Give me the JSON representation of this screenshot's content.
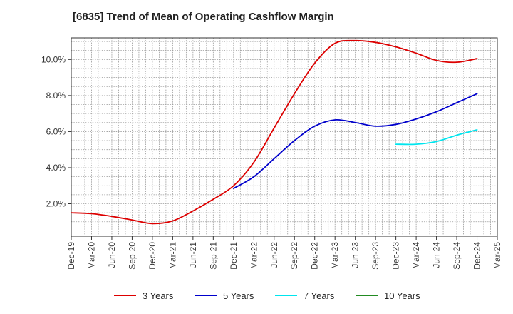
{
  "chart_data": {
    "type": "line",
    "title": "[6835]  Trend of Mean of Operating Cashflow Margin",
    "xlabel": "",
    "ylabel": "",
    "x": [
      "Dec-19",
      "Mar-20",
      "Jun-20",
      "Sep-20",
      "Dec-20",
      "Mar-21",
      "Jun-21",
      "Sep-21",
      "Dec-21",
      "Mar-22",
      "Jun-22",
      "Sep-22",
      "Dec-22",
      "Mar-23",
      "Jun-23",
      "Sep-23",
      "Dec-23",
      "Mar-24",
      "Jun-24",
      "Sep-24",
      "Dec-24",
      "Mar-25"
    ],
    "ylim": [
      0.2,
      11.2
    ],
    "y_ticks": [
      2.0,
      4.0,
      6.0,
      8.0,
      10.0
    ],
    "y_tick_labels": [
      "2.0%",
      "4.0%",
      "6.0%",
      "8.0%",
      "10.0%"
    ],
    "grid": true,
    "legend_position": "bottom",
    "series": [
      {
        "name": "3 Years",
        "color": "#dd0000",
        "values": [
          1.5,
          1.45,
          1.3,
          1.1,
          0.9,
          1.05,
          1.6,
          2.25,
          3.0,
          4.3,
          6.2,
          8.1,
          9.8,
          10.9,
          11.05,
          10.95,
          10.7,
          10.35,
          9.95,
          9.85,
          10.05,
          null
        ]
      },
      {
        "name": "5 Years",
        "color": "#0000cc",
        "values": [
          null,
          null,
          null,
          null,
          null,
          null,
          null,
          null,
          2.85,
          3.5,
          4.5,
          5.5,
          6.3,
          6.65,
          6.5,
          6.3,
          6.4,
          6.7,
          7.1,
          7.6,
          8.1,
          null
        ]
      },
      {
        "name": "7 Years",
        "color": "#00e5ee",
        "values": [
          null,
          null,
          null,
          null,
          null,
          null,
          null,
          null,
          null,
          null,
          null,
          null,
          null,
          null,
          null,
          null,
          5.3,
          5.3,
          5.45,
          5.8,
          6.1,
          null
        ]
      },
      {
        "name": "10 Years",
        "color": "#228b22",
        "values": [
          null,
          null,
          null,
          null,
          null,
          null,
          null,
          null,
          null,
          null,
          null,
          null,
          null,
          null,
          null,
          null,
          null,
          null,
          null,
          null,
          null,
          null
        ]
      }
    ]
  }
}
